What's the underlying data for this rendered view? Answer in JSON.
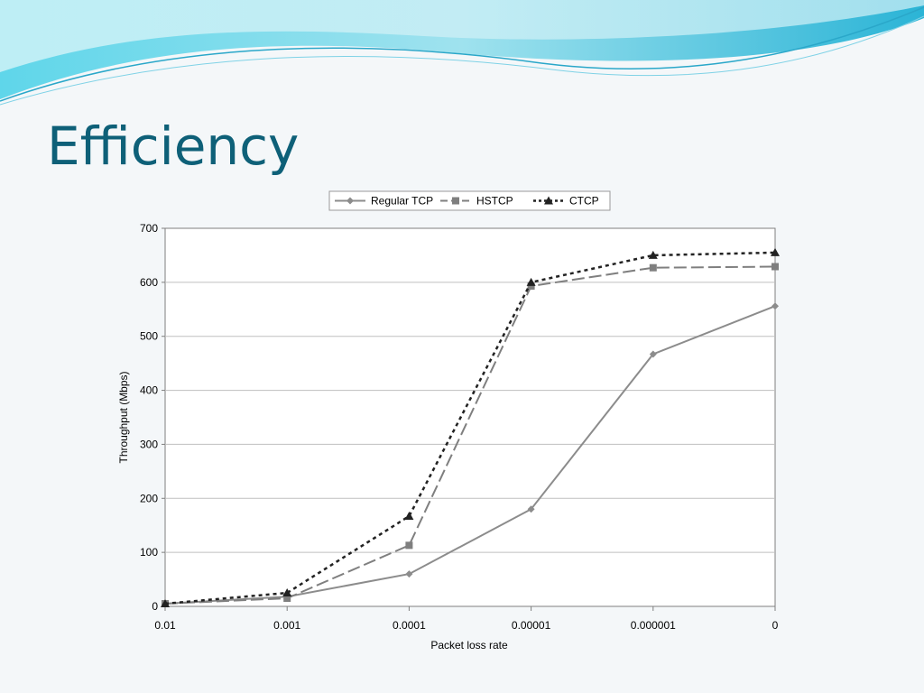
{
  "slide": {
    "title": "Efficiency"
  },
  "colors": {
    "title": "#0e6078",
    "wave_light": "#b8ecf2",
    "wave_dark": "#4cc4dc",
    "regular_tcp": "#8c8c8c",
    "hstcp": "#7f7f7f",
    "ctcp": "#222222"
  },
  "chart_data": {
    "type": "line",
    "categories": [
      "0.01",
      "0.001",
      "0.0001",
      "0.00001",
      "0.000001",
      "0"
    ],
    "xlabel": "Packet loss rate",
    "ylabel": "Throughput (Mbps)",
    "ylim": [
      0,
      700
    ],
    "yticks": [
      0,
      100,
      200,
      300,
      400,
      500,
      600,
      700
    ],
    "grid": true,
    "legend_position": "top",
    "series": [
      {
        "name": "Regular TCP",
        "marker": "diamond",
        "dash": "solid",
        "values": [
          5,
          18,
          60,
          180,
          467,
          556
        ]
      },
      {
        "name": "HSTCP",
        "marker": "square",
        "dash": "dashed",
        "values": [
          5,
          15,
          113,
          593,
          627,
          629
        ]
      },
      {
        "name": "CTCP",
        "marker": "triangle",
        "dash": "dotted",
        "values": [
          5,
          25,
          167,
          600,
          650,
          655
        ]
      }
    ]
  }
}
